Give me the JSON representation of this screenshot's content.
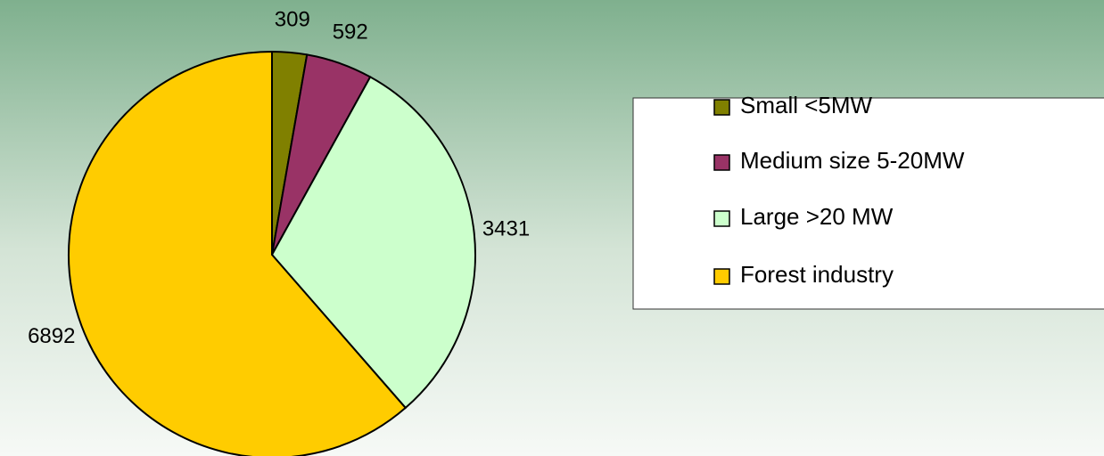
{
  "chart_data": {
    "type": "pie",
    "categories": [
      "Small <5MW",
      "Medium size 5-20MW",
      "Large >20 MW",
      "Forest industry"
    ],
    "values": [
      309,
      592,
      3431,
      6892
    ],
    "colors": [
      "#808000",
      "#993366",
      "#ccffcc",
      "#ffcc00"
    ],
    "legend": "right"
  }
}
